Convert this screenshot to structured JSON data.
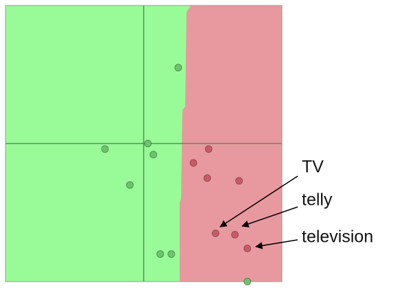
{
  "chart_data": {
    "type": "scatter",
    "xlim": [
      -1,
      1
    ],
    "ylim": [
      -1,
      1
    ],
    "regions": {
      "left": "#98fb98",
      "right": "#e8999f"
    },
    "boundary": {
      "x": [
        0.34,
        0.31,
        0.3,
        0.28,
        0.27,
        0.26,
        0.26
      ],
      "y": [
        1.0,
        0.95,
        0.27,
        0.24,
        -0.4,
        -0.43,
        -1.0
      ]
    },
    "series": [
      {
        "color": "#6cc46c",
        "x": [
          0.25,
          -0.28,
          0.03,
          0.07,
          -0.1,
          0.12,
          0.2,
          0.75
        ],
        "values": [
          0.55,
          -0.04,
          0.0,
          -0.08,
          -0.3,
          -0.8,
          -0.8,
          -1.0
        ]
      },
      {
        "color": "#cc5a66",
        "x": [
          0.47,
          0.36,
          0.46,
          0.69,
          0.52,
          0.66,
          0.75
        ],
        "values": [
          -0.04,
          -0.14,
          -0.25,
          -0.27,
          -0.65,
          -0.66,
          -0.76
        ]
      }
    ],
    "annotations": [
      "TV",
      "telly",
      "television"
    ]
  }
}
